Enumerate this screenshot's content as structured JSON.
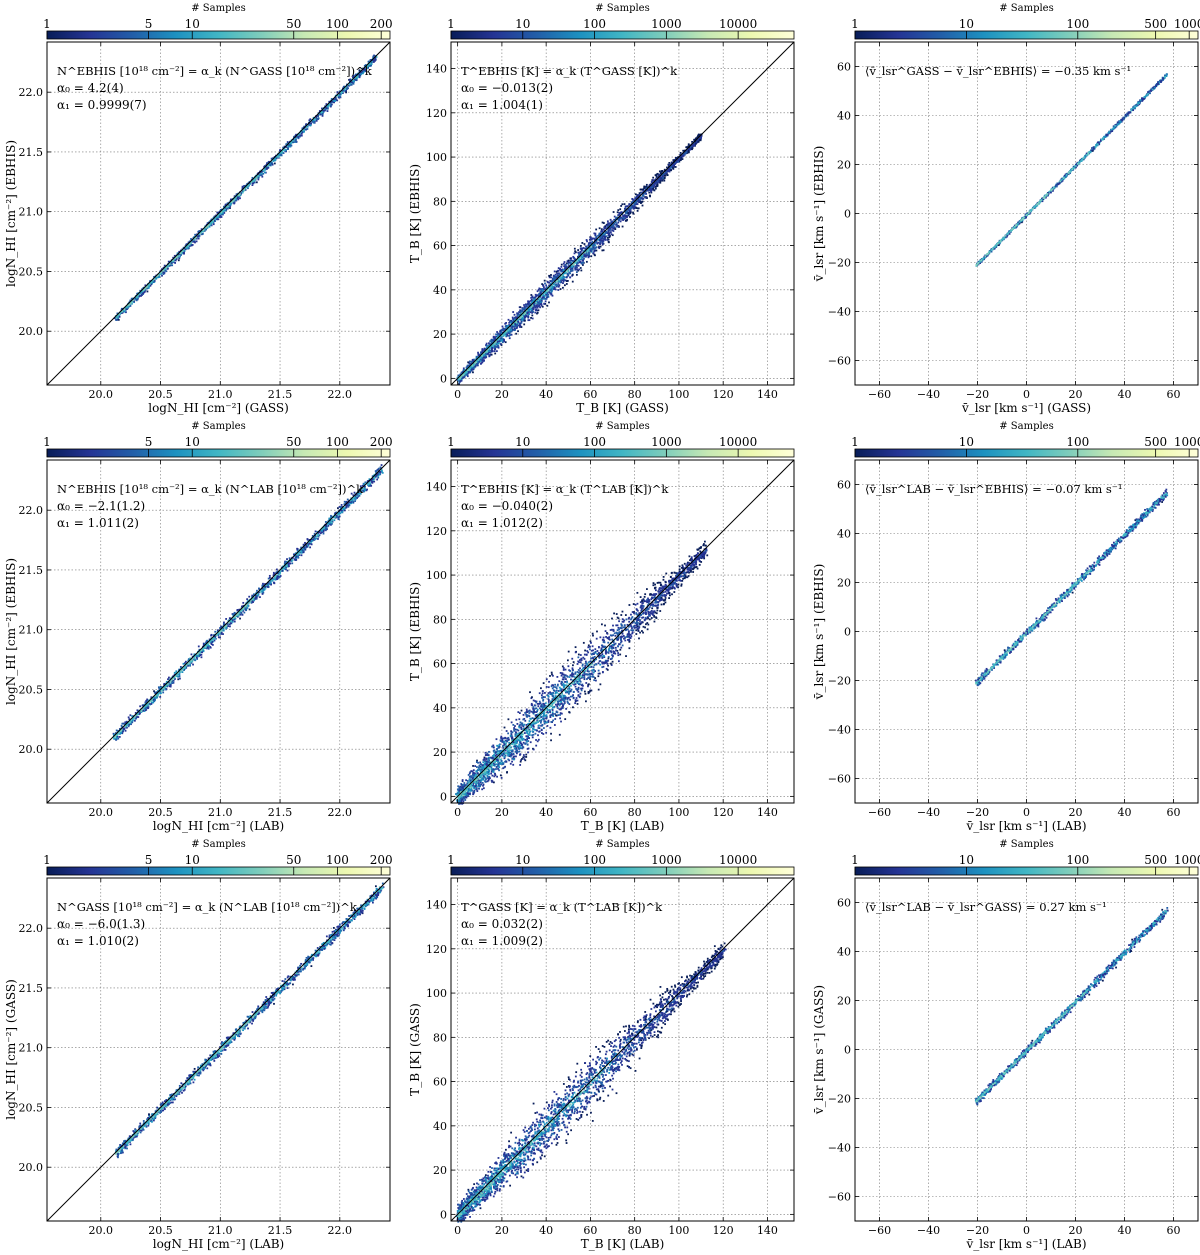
{
  "colormap": [
    "#081d58",
    "#253494",
    "#225ea8",
    "#1d91c0",
    "#41b6c4",
    "#7fcdbb",
    "#c7e9b4",
    "#edf8b1",
    "#ffffd9"
  ],
  "line_color": "#000000",
  "colorbar_label": "# Samples",
  "chart_data": [
    {
      "type": "heatmap",
      "row": 0,
      "col": 0,
      "kind": "nhi",
      "cbar": {
        "min": 1,
        "max": 230,
        "log": true,
        "ticks": [
          1,
          5,
          10,
          50,
          100,
          200
        ],
        "labels": [
          "1",
          "5",
          "10",
          "50",
          "100",
          "200"
        ]
      },
      "xlim": [
        19.55,
        22.42
      ],
      "ylim": [
        19.55,
        22.42
      ],
      "xticks": [
        20.0,
        20.5,
        21.0,
        21.5,
        22.0
      ],
      "xtick_labels": [
        "20.0",
        "20.5",
        "21.0",
        "21.5",
        "22.0"
      ],
      "yticks": [
        20.0,
        20.5,
        21.0,
        21.5,
        22.0
      ],
      "ytick_labels": [
        "20.0",
        "20.5",
        "21.0",
        "21.5",
        "22.0"
      ],
      "xlabel": "logN_HI [cm⁻²] (GASS)",
      "ylabel": "logN_HI [cm⁻²] (EBHIS)",
      "annotations": [
        "N^EBHIS [10¹⁸ cm⁻²] = α_k (N^GASS [10¹⁸ cm⁻²])^k",
        "α₀ = 4.2(4)",
        "α₁ = 0.9999(7)"
      ],
      "one_to_one_line": true,
      "data_range": [
        20.12,
        22.3
      ],
      "spread": 0.022
    },
    {
      "type": "heatmap",
      "row": 0,
      "col": 1,
      "kind": "tb",
      "cbar": {
        "min": 1,
        "max": 60000,
        "log": true,
        "ticks": [
          1,
          10,
          100,
          1000,
          10000
        ],
        "labels": [
          "1",
          "10",
          "100",
          "1000",
          "10000"
        ]
      },
      "xlim": [
        -3,
        152
      ],
      "ylim": [
        -3,
        152
      ],
      "xticks": [
        0,
        20,
        40,
        60,
        80,
        100,
        120,
        140
      ],
      "xtick_labels": [
        "0",
        "20",
        "40",
        "60",
        "80",
        "100",
        "120",
        "140"
      ],
      "yticks": [
        0,
        20,
        40,
        60,
        80,
        100,
        120,
        140
      ],
      "ytick_labels": [
        "0",
        "20",
        "40",
        "60",
        "80",
        "100",
        "120",
        "140"
      ],
      "xlabel": "T_B [K] (GASS)",
      "ylabel": "T_B [K] (EBHIS)",
      "annotations": [
        "T^EBHIS [K] = α_k (T^GASS [K])^k",
        "α₀ = −0.013(2)",
        "α₁ = 1.004(1)"
      ],
      "one_to_one_line": true,
      "data_range": [
        0,
        110
      ],
      "spread": 2.8
    },
    {
      "type": "heatmap",
      "row": 0,
      "col": 2,
      "kind": "vel",
      "cbar": {
        "min": 1,
        "max": 1200,
        "log": true,
        "ticks": [
          1,
          10,
          100,
          500,
          1000
        ],
        "labels": [
          "1",
          "10",
          "100",
          "500",
          "1000"
        ]
      },
      "xlim": [
        -70,
        70
      ],
      "ylim": [
        -70,
        70
      ],
      "xticks": [
        -60,
        -40,
        -20,
        0,
        20,
        40,
        60
      ],
      "xtick_labels": [
        "−60",
        "−40",
        "−20",
        "0",
        "20",
        "40",
        "60"
      ],
      "yticks": [
        -60,
        -40,
        -20,
        0,
        20,
        40,
        60
      ],
      "ytick_labels": [
        "−60",
        "−40",
        "−20",
        "0",
        "20",
        "40",
        "60"
      ],
      "xlabel": "v̄_lsr [km s⁻¹] (GASS)",
      "ylabel": "v̄_lsr [km s⁻¹] (EBHIS)",
      "annotations": [
        "⟨v̄_lsr^GASS − v̄_lsr^EBHIS⟩ = −0.35 km s⁻¹"
      ],
      "one_to_one_line": false,
      "data_range": [
        -21,
        57
      ],
      "spread": 0.45
    },
    {
      "type": "heatmap",
      "row": 1,
      "col": 0,
      "kind": "nhi",
      "cbar": {
        "min": 1,
        "max": 230,
        "log": true,
        "ticks": [
          1,
          5,
          10,
          50,
          100,
          200
        ],
        "labels": [
          "1",
          "5",
          "10",
          "50",
          "100",
          "200"
        ]
      },
      "xlim": [
        19.55,
        22.42
      ],
      "ylim": [
        19.55,
        22.42
      ],
      "xticks": [
        20.0,
        20.5,
        21.0,
        21.5,
        22.0
      ],
      "xtick_labels": [
        "20.0",
        "20.5",
        "21.0",
        "21.5",
        "22.0"
      ],
      "yticks": [
        20.0,
        20.5,
        21.0,
        21.5,
        22.0
      ],
      "ytick_labels": [
        "20.0",
        "20.5",
        "21.0",
        "21.5",
        "22.0"
      ],
      "xlabel": "logN_HI [cm⁻²] (LAB)",
      "ylabel": "logN_HI [cm⁻²] (EBHIS)",
      "annotations": [
        "N^EBHIS [10¹⁸ cm⁻²] = α_k (N^LAB [10¹⁸ cm⁻²])^k",
        "α₀ = −2.1(1.2)",
        "α₁ = 1.011(2)"
      ],
      "one_to_one_line": true,
      "data_range": [
        20.1,
        22.35
      ],
      "spread": 0.03
    },
    {
      "type": "heatmap",
      "row": 1,
      "col": 1,
      "kind": "tb",
      "cbar": {
        "min": 1,
        "max": 60000,
        "log": true,
        "ticks": [
          1,
          10,
          100,
          1000,
          10000
        ],
        "labels": [
          "1",
          "10",
          "100",
          "1000",
          "10000"
        ]
      },
      "xlim": [
        -3,
        152
      ],
      "ylim": [
        -3,
        152
      ],
      "xticks": [
        0,
        20,
        40,
        60,
        80,
        100,
        120,
        140
      ],
      "xtick_labels": [
        "0",
        "20",
        "40",
        "60",
        "80",
        "100",
        "120",
        "140"
      ],
      "yticks": [
        0,
        20,
        40,
        60,
        80,
        100,
        120,
        140
      ],
      "ytick_labels": [
        "0",
        "20",
        "40",
        "60",
        "80",
        "100",
        "120",
        "140"
      ],
      "xlabel": "T_B [K] (LAB)",
      "ylabel": "T_B [K] (EBHIS)",
      "annotations": [
        "T^EBHIS [K] = α_k (T^LAB [K])^k",
        "α₀ = −0.040(2)",
        "α₁ = 1.012(2)"
      ],
      "one_to_one_line": true,
      "data_range": [
        0,
        112
      ],
      "spread": 6.5
    },
    {
      "type": "heatmap",
      "row": 1,
      "col": 2,
      "kind": "vel",
      "cbar": {
        "min": 1,
        "max": 1200,
        "log": true,
        "ticks": [
          1,
          10,
          100,
          500,
          1000
        ],
        "labels": [
          "1",
          "10",
          "100",
          "500",
          "1000"
        ]
      },
      "xlim": [
        -70,
        70
      ],
      "ylim": [
        -70,
        70
      ],
      "xticks": [
        -60,
        -40,
        -20,
        0,
        20,
        40,
        60
      ],
      "xtick_labels": [
        "−60",
        "−40",
        "−20",
        "0",
        "20",
        "40",
        "60"
      ],
      "yticks": [
        -60,
        -40,
        -20,
        0,
        20,
        40,
        60
      ],
      "ytick_labels": [
        "−60",
        "−40",
        "−20",
        "0",
        "20",
        "40",
        "60"
      ],
      "xlabel": "v̄_lsr [km s⁻¹] (LAB)",
      "ylabel": "v̄_lsr [km s⁻¹] (EBHIS)",
      "annotations": [
        "⟨v̄_lsr^LAB − v̄_lsr^EBHIS⟩ = −0.07 km s⁻¹"
      ],
      "one_to_one_line": false,
      "data_range": [
        -21,
        57
      ],
      "spread": 1.1
    },
    {
      "type": "heatmap",
      "row": 2,
      "col": 0,
      "kind": "nhi",
      "cbar": {
        "min": 1,
        "max": 230,
        "log": true,
        "ticks": [
          1,
          5,
          10,
          50,
          100,
          200
        ],
        "labels": [
          "1",
          "5",
          "10",
          "50",
          "100",
          "200"
        ]
      },
      "xlim": [
        19.55,
        22.42
      ],
      "ylim": [
        19.55,
        22.42
      ],
      "xticks": [
        20.0,
        20.5,
        21.0,
        21.5,
        22.0
      ],
      "xtick_labels": [
        "20.0",
        "20.5",
        "21.0",
        "21.5",
        "22.0"
      ],
      "yticks": [
        20.0,
        20.5,
        21.0,
        21.5,
        22.0
      ],
      "ytick_labels": [
        "20.0",
        "20.5",
        "21.0",
        "21.5",
        "22.0"
      ],
      "xlabel": "logN_HI [cm⁻²] (LAB)",
      "ylabel": "logN_HI [cm⁻²] (GASS)",
      "annotations": [
        "N^GASS [10¹⁸ cm⁻²] = α_k (N^LAB [10¹⁸ cm⁻²])^k",
        "α₀ = −6.0(1.3)",
        "α₁ = 1.010(2)"
      ],
      "one_to_one_line": true,
      "data_range": [
        20.12,
        22.35
      ],
      "spread": 0.03
    },
    {
      "type": "heatmap",
      "row": 2,
      "col": 1,
      "kind": "tb",
      "cbar": {
        "min": 1,
        "max": 60000,
        "log": true,
        "ticks": [
          1,
          10,
          100,
          1000,
          10000
        ],
        "labels": [
          "1",
          "10",
          "100",
          "1000",
          "10000"
        ]
      },
      "xlim": [
        -3,
        152
      ],
      "ylim": [
        -3,
        152
      ],
      "xticks": [
        0,
        20,
        40,
        60,
        80,
        100,
        120,
        140
      ],
      "xtick_labels": [
        "0",
        "20",
        "40",
        "60",
        "80",
        "100",
        "120",
        "140"
      ],
      "yticks": [
        0,
        20,
        40,
        60,
        80,
        100,
        120,
        140
      ],
      "ytick_labels": [
        "0",
        "20",
        "40",
        "60",
        "80",
        "100",
        "120",
        "140"
      ],
      "xlabel": "T_B [K] (LAB)",
      "ylabel": "T_B [K] (GASS)",
      "annotations": [
        "T^GASS [K] = α_k (T^LAB [K])^k",
        "α₀ = 0.032(2)",
        "α₁ = 1.009(2)"
      ],
      "one_to_one_line": true,
      "data_range": [
        0,
        120
      ],
      "spread": 6.0
    },
    {
      "type": "heatmap",
      "row": 2,
      "col": 2,
      "kind": "vel",
      "cbar": {
        "min": 1,
        "max": 1200,
        "log": true,
        "ticks": [
          1,
          10,
          100,
          500,
          1000
        ],
        "labels": [
          "1",
          "10",
          "100",
          "500",
          "1000"
        ]
      },
      "xlim": [
        -70,
        70
      ],
      "ylim": [
        -70,
        70
      ],
      "xticks": [
        -60,
        -40,
        -20,
        0,
        20,
        40,
        60
      ],
      "xtick_labels": [
        "−60",
        "−40",
        "−20",
        "0",
        "20",
        "40",
        "60"
      ],
      "yticks": [
        -60,
        -40,
        -20,
        0,
        20,
        40,
        60
      ],
      "ytick_labels": [
        "−60",
        "−40",
        "−20",
        "0",
        "20",
        "40",
        "60"
      ],
      "xlabel": "v̄_lsr [km s⁻¹] (LAB)",
      "ylabel": "v̄_lsr [km s⁻¹] (GASS)",
      "annotations": [
        "⟨v̄_lsr^LAB − v̄_lsr^GASS⟩ = 0.27 km s⁻¹"
      ],
      "one_to_one_line": false,
      "data_range": [
        -21,
        57
      ],
      "spread": 1.1
    }
  ]
}
